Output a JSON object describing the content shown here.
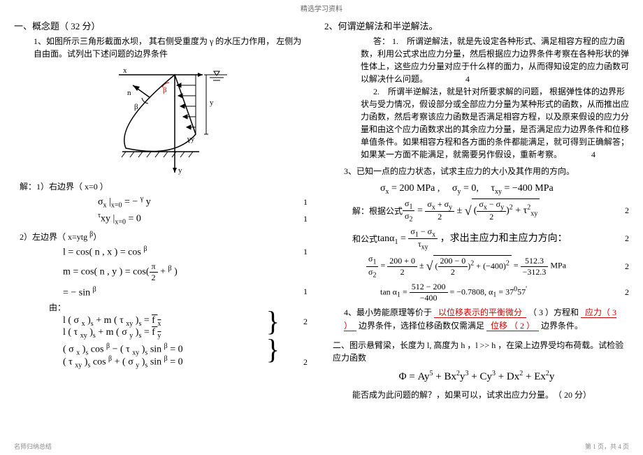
{
  "header": "精选学习资料",
  "left": {
    "section1_title": "一、概念题（ 32 分）",
    "q1": "1、如图所示三角形截面水坝， 其右侧受重度为 γ 的水压力作用， 左侧为自由面。试列出下述问题的边界条件",
    "diagram": {
      "axis_x": "x",
      "axis_y": "y",
      "label_n": "n",
      "label_beta": "β",
      "label_beta2": "β",
      "label_y": "y",
      "label_gammay": "γy",
      "stroke": "#000000",
      "fill": "#ffffff",
      "red": "#d00000"
    },
    "ans1_label": "解：1）右边界（ x=0 ）",
    "f1": "σ<span class='sub'>x</span> |<span class='sub'>x=0</span> = − <span class='sup'>γ</span> y",
    "f1n": "1",
    "f2": "<span class='sup'>τ</span>xy |<span class='sub'>x=0</span> = 0",
    "f2n": "1",
    "ans2_label": "2）左边界（ x=ytg <span class='sup'>β</span>）",
    "f3": "l = cos( n , x ) = cos <span class='sup'>β</span>",
    "f3n": "1",
    "f4": "m = cos( n , y ) = cos(<span class='frac'><span class='num'>π</span><span class='den'>2</span></span> + <span class='sup'>β</span> )",
    "f4n": "",
    "f5": "= − sin <span class='sup'>β</span>",
    "f5n": "1",
    "by_label": "由：",
    "f6": "l ( σ <span class='sub'>x</span> )<span class='sub'>s</span> + m ( τ <span class='sub'>xy</span> )<span class='sub'>s</span> = <span class='bar'>f <span class='sub'>x</span></span>",
    "f6n": "2",
    "f7": "l ( τ <span class='sub'>xy</span> )<span class='sub'>s</span> + m ( σ <span class='sub'>y</span> )<span class='sub'>s</span> = <span class='bar'>f <span class='sub'>y</span></span>",
    "f7n": "",
    "f8": "( σ <span class='sub'>x</span> )<span class='sub'>s</span> cos <span class='sup'>β</span> − ( τ <span class='sub'>xy</span> )<span class='sub'>s</span> sin <span class='sup'>β</span> = 0",
    "f8n": "",
    "f9": "( τ <span class='sub'>xy</span> )<span class='sub'>s</span> cos <span class='sup'>β</span> + ( σ <span class='sub'>y</span> )<span class='sub'>s</span> sin <span class='sup'>β</span> = 0",
    "f9n": "2"
  },
  "right": {
    "q2": "2、何谓逆解法和半逆解法。",
    "ans2_lead": "答： 1.　所谓逆解法，就是先设定各种形式、满足相容方程的应力函数，利用公式求出应力分量，然后根据应力边界条件考察在各种形状的弹性体上，这些应力分量对应于什么样的面力，从而得知设定的应力函数可以解决什么问题。　　　　　4",
    "ans2_p2": "2.　所谓半逆解法，就是针对所要求解的问题， 根据弹性体的边界形状与受力情况，假设部分或全部应力分量为某种形式的函数，从而推出应力函数，然后考察该应力函数是否满足相容方程，以及原来假设的应力分量和由这个应力函数求出的其余应力分量，是否满足应力边界条件和位移单值条件。如果相容方程和各方面的条件都能满足，就可得到正确解答；如果某一方面不能满足，就需要另作假设，重新考察。　　　　4",
    "q3": "3、已知一点的应力状态，试求主应力的大小及其作用的方向。",
    "f_sigma": "σ<span class='sub'>x</span> = 200 MPa ,　 σ<span class='sub'>y</span> = 0,　 τ<span class='sub'>xy</span> = −400 MPa",
    "f_lead": "解：根据公式 ",
    "f_main": "<span class='frac'><span class='num'>σ<span class='sub'>1</span></span><span class='den'>σ<span class='sub'>2</span></span></span> = <span class='frac'><span class='num'>σ<span class='sub'>x</span> + σ<span class='sub'>y</span></span><span class='den'>2</span></span> ± <span class='sqrt-sign'>√</span><span class='sqrt'>(<span class='frac'><span class='num'>σ<span class='sub'>x</span> − σ<span class='sub'>y</span></span><span class='den'>2</span></span>)<span class='sup'>2</span> + τ<span class='sup'>2</span><span class='sub'>xy</span></span>",
    "f_main_n": "2",
    "f_tan_lead": "和公式 ",
    "f_tan": "tanα<span class='sub'>1</span> = <span class='frac'><span class='num'>σ<span class='sub'>1</span> − σ<span class='sub'>x</span></span><span class='den'>τ<span class='sub'>xy</span></span></span> ，求出主应力和主应力方向：",
    "f_tan_n": "2",
    "f_num": "<span class='frac'><span class='num'>σ<span class='sub'>1</span></span><span class='den'>σ<span class='sub'>2</span></span></span> = <span class='frac'><span class='num'>200 + 0</span><span class='den'>2</span></span> ± <span class='sqrt-sign'>√</span><span class='sqrt'>(<span class='frac'><span class='num'>200 − 0</span><span class='den'>2</span></span>)<span class='sup'>2</span> + (−400)<span class='sup'>2</span></span> = <span class='frac'><span class='num'>512.3</span><span class='den'>−312.3</span></span> MPa",
    "f_num_n": "2",
    "f_tan2": "tan α<span class='sub'>1</span> = <span class='frac'><span class='num'>512 − 200</span><span class='den'>−400</span></span> = −0.7808, α<span class='sub'>1</span> = 37<span class='sup'>0</span>57<span class='sup'>'</span>",
    "f_tan2_n": "2",
    "q4a": "4、最小势能原理等价于",
    "q4b": "以位移表示的平衡微分",
    "q4c": "（ 3 ）方程和",
    "q4d": "应力（ 3 ）",
    "q4e": "边界条件，选择位移函数仅需满足",
    "q4f": "位移 （ 2 ）",
    "q4g": "边界条件。",
    "s2_1": "二、图示悬臂梁，长度为 l, 高度为 h ，l >> h ，在梁上边界受均布荷载。试检验应力函数",
    "s2_phi": "Φ = Ay<span class='sup'>5</span> + Bx<span class='sup'>2</span>y<span class='sup'>3</span> + Cy<span class='sup'>3</span> + Dx<span class='sup'>2</span> + Ex<span class='sup'>2</span>y",
    "s2_2": "能否成为此问题的解？，如果可以，试求出应力分量。　（ 20 分）"
  },
  "footer_left": "名师归纳总结",
  "footer_right": "第 1 页，共 4 页"
}
